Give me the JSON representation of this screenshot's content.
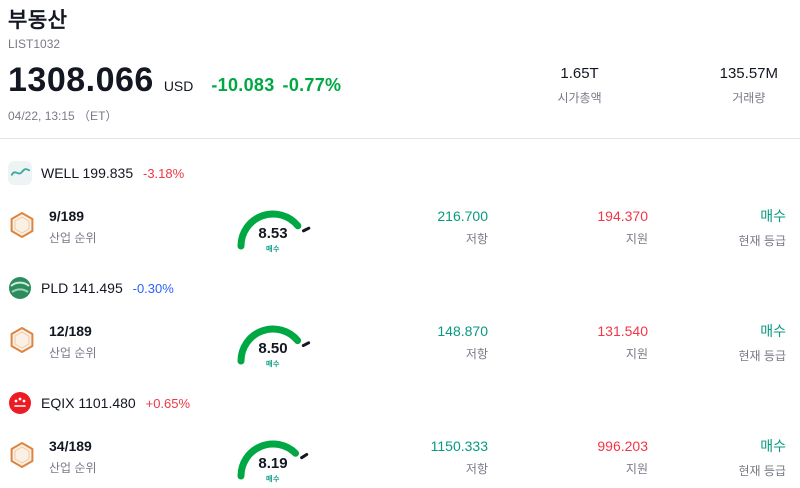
{
  "header": {
    "title": "부동산",
    "subtitle": "LIST1032",
    "price": "1308.066",
    "currency": "USD",
    "change": "-10.083",
    "change_pct": "-0.77%",
    "change_color": "#00a843",
    "datetime": "04/22, 13:15 （ET）",
    "market_cap": {
      "value": "1.65T",
      "label": "시가총액"
    },
    "volume": {
      "value": "135.57M",
      "label": "거래량"
    }
  },
  "colors": {
    "gauge_arc": "#00a843",
    "resistance": "#089981",
    "support": "#f23645",
    "rating": "#089981"
  },
  "stocks": [
    {
      "ticker": "WELL",
      "price": "199.835",
      "change": "-3.18%",
      "change_color": "#f23645",
      "rank": "9/189",
      "rank_label": "산업 순위",
      "gauge_value": 8.53,
      "gauge_display": "8.53",
      "gauge_label": "매수",
      "resistance": "216.700",
      "resistance_label": "저항",
      "support": "194.370",
      "support_label": "지원",
      "rating": "매수",
      "rating_label": "현재 등급"
    },
    {
      "ticker": "PLD",
      "price": "141.495",
      "change": "-0.30%",
      "change_color": "#2962ff",
      "rank": "12/189",
      "rank_label": "산업 순위",
      "gauge_value": 8.5,
      "gauge_display": "8.50",
      "gauge_label": "매수",
      "resistance": "148.870",
      "resistance_label": "저항",
      "support": "131.540",
      "support_label": "지원",
      "rating": "매수",
      "rating_label": "현재 등급"
    },
    {
      "ticker": "EQIX",
      "price": "1101.480",
      "change": "+0.65%",
      "change_color": "#f23645",
      "rank": "34/189",
      "rank_label": "산업 순위",
      "gauge_value": 8.19,
      "gauge_display": "8.19",
      "gauge_label": "매수",
      "resistance": "1150.333",
      "resistance_label": "저항",
      "support": "996.203",
      "support_label": "지원",
      "rating": "매수",
      "rating_label": "현재 등급"
    }
  ]
}
